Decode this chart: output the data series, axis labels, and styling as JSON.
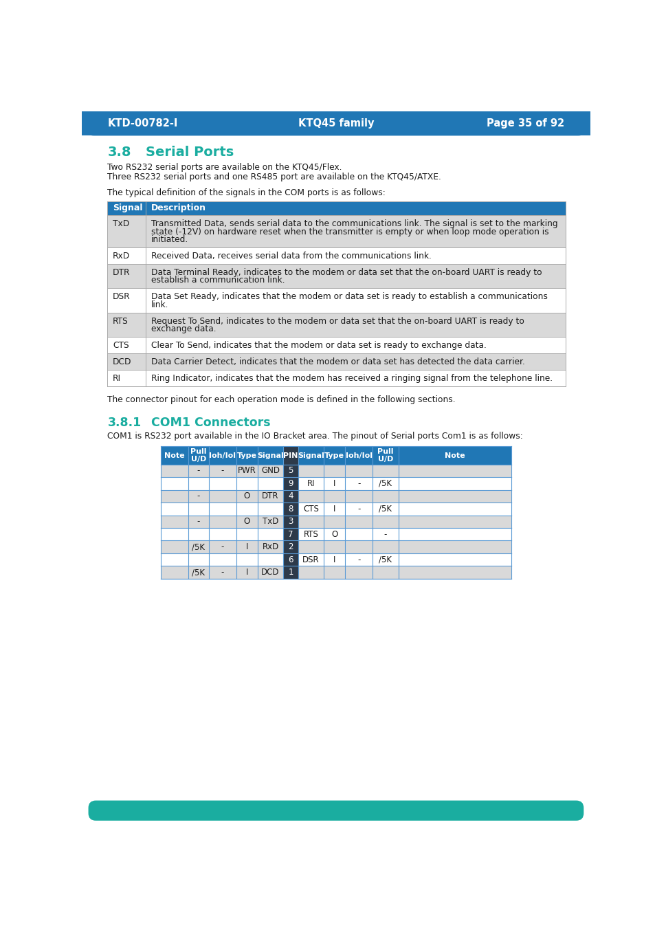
{
  "header_bg": "#2077b5",
  "header_text_color": "#ffffff",
  "footer_bg": "#1aada0",
  "page_bg": "#ffffff",
  "header_left": "KTD-00782-I",
  "header_center": "KTQ45 family",
  "header_right": "Page 35 of 92",
  "section_title": "3.8",
  "section_name": "Serial Ports",
  "section_title_color": "#1aada0",
  "body_text_color": "#1a1a1a",
  "para1_lines": [
    "Two RS232 serial ports are available on the KTQ45/Flex.",
    "Three RS232 serial ports and one RS485 port are available on the KTQ45/ATXE."
  ],
  "para2": "The typical definition of the signals in the COM ports is as follows:",
  "table1_header": [
    "Signal",
    "Description"
  ],
  "table1_rows": [
    [
      "TxD",
      "Transmitted Data, sends serial data to the communications link. The signal is set to the marking\nstate (-12V) on hardware reset when the transmitter is empty or when loop mode operation is\ninitiated."
    ],
    [
      "RxD",
      "Received Data, receives serial data from the communications link."
    ],
    [
      "DTR",
      "Data Terminal Ready, indicates to the modem or data set that the on-board UART is ready to\nestablish a communication link."
    ],
    [
      "DSR",
      "Data Set Ready, indicates that the modem or data set is ready to establish a communications\nlink."
    ],
    [
      "RTS",
      "Request To Send, indicates to the modem or data set that the on-board UART is ready to\nexchange data."
    ],
    [
      "CTS",
      "Clear To Send, indicates that the modem or data set is ready to exchange data."
    ],
    [
      "DCD",
      "Data Carrier Detect, indicates that the modem or data set has detected the data carrier."
    ],
    [
      "RI",
      "Ring Indicator, indicates that the modem has received a ringing signal from the telephone line."
    ]
  ],
  "para3": "The connector pinout for each operation mode is defined in the following sections.",
  "section2_title": "3.8.1",
  "section2_name": "COM1 Connectors",
  "para4": "COM1 is RS232 port available in the IO Bracket area. The pinout of Serial ports Com1 is as follows:",
  "table2_headers": [
    "Note",
    "Pull\nU/D",
    "Ioh/Iol",
    "Type",
    "Signal",
    "PIN",
    "Signal",
    "Type",
    "Ioh/Iol",
    "Pull\nU/D",
    "Note"
  ],
  "table2_header_bg": "#2077b5",
  "table2_header_color": "#ffffff",
  "pin_col_bg": "#2d3a4a",
  "pin_col_color": "#ffffff",
  "table1_header_bg": "#2077b5",
  "table1_header_color": "#ffffff",
  "table_border_color": "#5b9bd5",
  "table1_border_color": "#aaaaaa",
  "table_alt_row_color": "#d9d9d9",
  "table_row_color": "#ffffff",
  "table2_rows": [
    [
      "",
      "-",
      "-",
      "PWR",
      "GND",
      "5",
      "",
      "",
      "",
      "",
      ""
    ],
    [
      "",
      "",
      "",
      "",
      "",
      "9",
      "RI",
      "I",
      "-",
      "/5K",
      ""
    ],
    [
      "",
      "-",
      "",
      "O",
      "DTR",
      "4",
      "",
      "",
      "",
      "",
      ""
    ],
    [
      "",
      "",
      "",
      "",
      "",
      "8",
      "CTS",
      "I",
      "-",
      "/5K",
      ""
    ],
    [
      "",
      "-",
      "",
      "O",
      "TxD",
      "3",
      "",
      "",
      "",
      "",
      ""
    ],
    [
      "",
      "",
      "",
      "",
      "",
      "7",
      "RTS",
      "O",
      "",
      "-",
      ""
    ],
    [
      "",
      "/5K",
      "-",
      "I",
      "RxD",
      "2",
      "",
      "",
      "",
      "",
      ""
    ],
    [
      "",
      "",
      "",
      "",
      "",
      "6",
      "DSR",
      "I",
      "-",
      "/5K",
      ""
    ],
    [
      "",
      "/5K",
      "-",
      "I",
      "DCD",
      "1",
      "",
      "",
      "",
      "",
      ""
    ]
  ]
}
